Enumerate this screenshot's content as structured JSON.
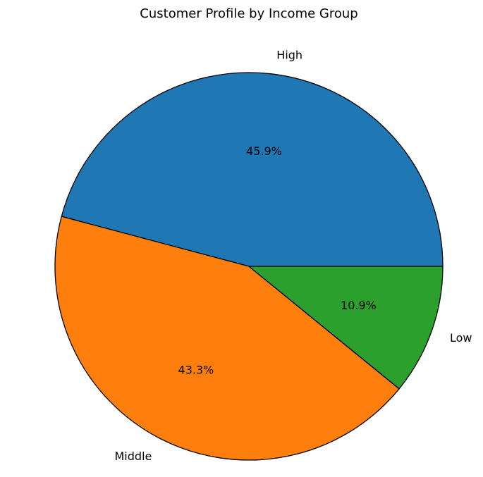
{
  "chart_data": {
    "type": "pie",
    "title": "Customer Profile by Income Group",
    "categories": [
      "High",
      "Middle",
      "Low"
    ],
    "values": [
      45.9,
      43.3,
      10.9
    ],
    "percent_labels": [
      "45.9%",
      "43.3%",
      "10.9%"
    ],
    "colors": [
      "#1f77b4",
      "#ff7f0e",
      "#2ca02c"
    ],
    "start_angle": 0,
    "direction": "counterclockwise",
    "edge_color": "#000000",
    "legend": "none"
  }
}
